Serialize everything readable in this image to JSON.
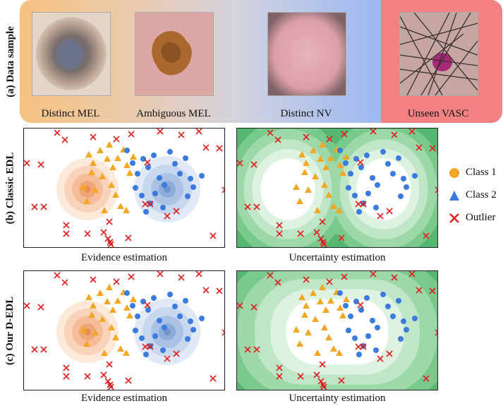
{
  "row_labels": {
    "a": "(a) Data sample",
    "b": "(b) Classic EDL",
    "c": "(c) Our D-EDL"
  },
  "samples": [
    {
      "caption": "Distinct MEL"
    },
    {
      "caption": "Ambiguous MEL"
    },
    {
      "caption": "Distinct NV"
    },
    {
      "caption": "Unseen VASC"
    }
  ],
  "panel_captions": {
    "b_left": "Evidence estimation",
    "b_right": "Uncertainty estimation",
    "c_left": "Evidence estimation",
    "c_right": "Uncertainty estimation"
  },
  "legend": [
    {
      "label": "Class 1",
      "shape": "circle",
      "color": "#f5a623"
    },
    {
      "label": "Class 2",
      "shape": "triangle",
      "color": "#3b7be0"
    },
    {
      "label": "Outlier",
      "shape": "cross",
      "color": "#e02020"
    }
  ],
  "colors": {
    "class1": "#f5a623",
    "class2": "#3b7be0",
    "outlier": "#e02020",
    "uncertainty": "#5cc07a"
  }
}
